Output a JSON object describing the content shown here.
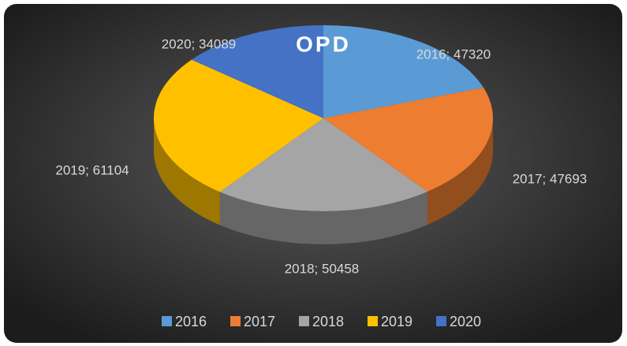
{
  "chart_data": {
    "type": "pie",
    "title": "OPD",
    "categories": [
      "2016",
      "2017",
      "2018",
      "2019",
      "2020"
    ],
    "values": [
      47320,
      47693,
      50458,
      61104,
      34089
    ],
    "value_labels": [
      "2016; 47320",
      "2017; 47693",
      "2018; 50458",
      "2019; 61104",
      "2020; 34089"
    ],
    "colors": [
      "#5b9bd5",
      "#ed7d31",
      "#a5a5a5",
      "#ffc000",
      "#4472c4"
    ],
    "legend": "bottom"
  }
}
